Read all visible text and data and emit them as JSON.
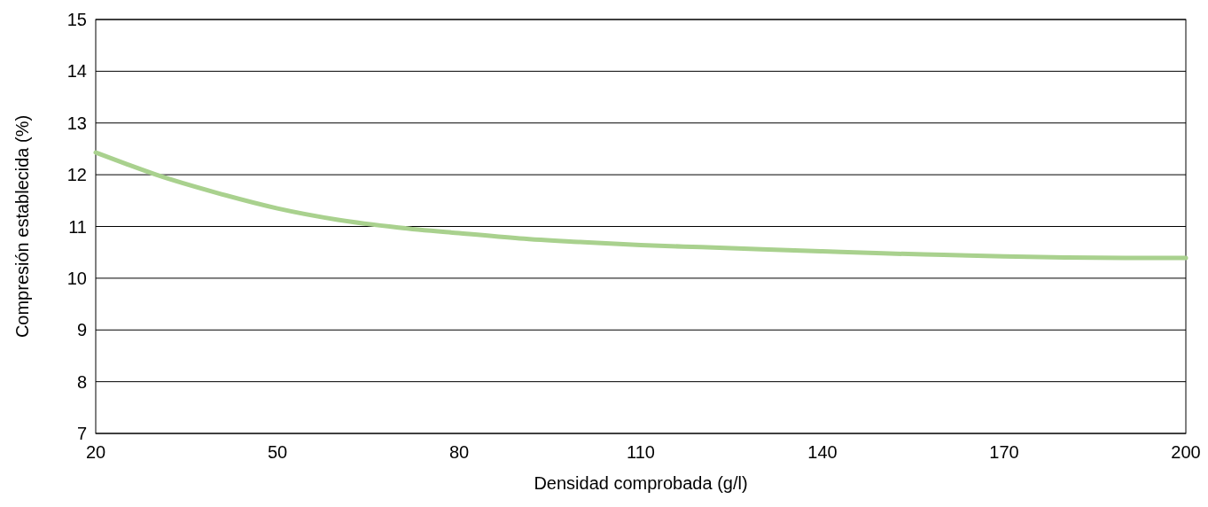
{
  "chart_data": {
    "type": "line",
    "xlabel": "Densidad comprobada (g/l)",
    "ylabel": "Compresión establecida (%)",
    "xlim": [
      20,
      200
    ],
    "xticks": [
      20,
      50,
      80,
      110,
      140,
      170,
      200
    ],
    "ylim": [
      7,
      15
    ],
    "yticks": [
      7,
      8,
      9,
      10,
      11,
      12,
      13,
      14,
      15
    ],
    "grid": "y",
    "marker": "none",
    "line_style": "solid",
    "series": [
      {
        "color": "#a9d18e",
        "x": [
          20,
          25,
          30,
          40,
          50,
          60,
          70,
          80,
          90,
          100,
          110,
          120,
          130,
          140,
          150,
          160,
          170,
          180,
          190,
          200
        ],
        "values": [
          12.43,
          12.21,
          12.0,
          11.65,
          11.35,
          11.13,
          10.98,
          10.87,
          10.77,
          10.7,
          10.64,
          10.6,
          10.56,
          10.52,
          10.48,
          10.45,
          10.42,
          10.4,
          10.39,
          10.39
        ]
      }
    ]
  }
}
